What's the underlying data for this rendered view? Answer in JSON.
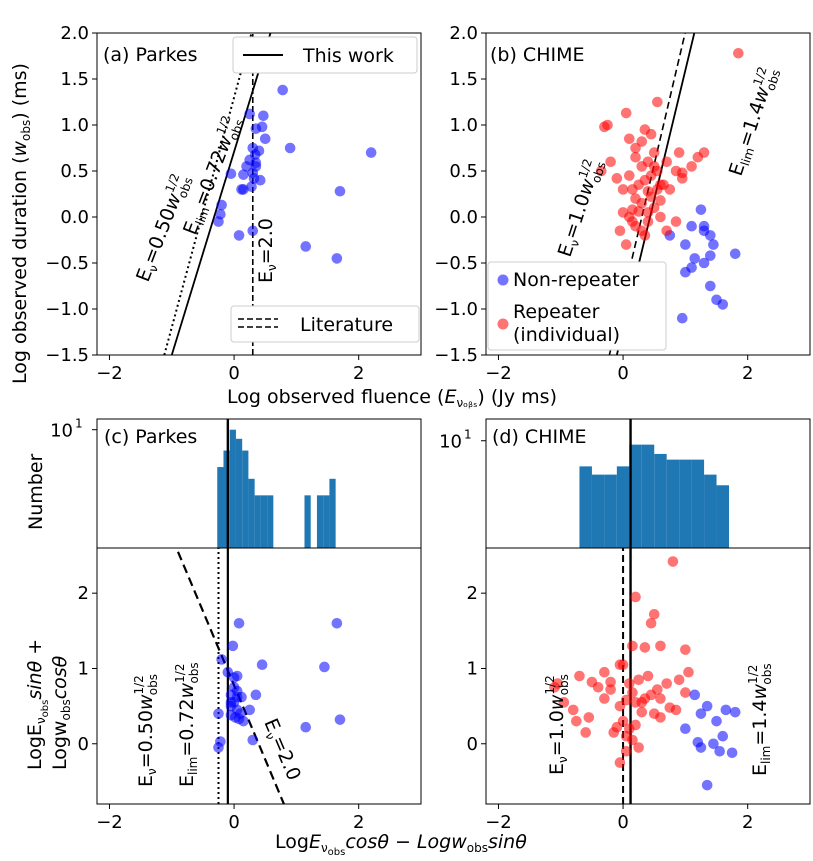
{
  "colors": {
    "blue": "#0000ff",
    "red": "#ff0000",
    "hist": "#1f77b4",
    "black": "#000000"
  },
  "figure": {
    "ylabel_top": "Log observed duration (wₒᵦₛ) (ms)",
    "ylabel_top_main": "Log observed duration (",
    "ylabel_top_w": "w",
    "ylabel_top_sub": "obs",
    "ylabel_top_end": ") (ms)",
    "xlabel_top_main": "Log observed fluence (",
    "xlabel_top_E": "E",
    "xlabel_top_sub": "νₒᵦₛ",
    "xlabel_top_end": ") (Jy ms)",
    "ylabel_hist": "Number",
    "ylabel_bottom_1": "LogE",
    "ylabel_bottom_1b": "sinθ +",
    "ylabel_bottom_2": "Logw",
    "ylabel_bottom_2b": "cosθ",
    "xlabel_bottom": "LogEνₒᵦₛcosθ − Logwₒᵦₛsinθ",
    "sub_obs": "obs",
    "sub_nu": "ν",
    "x_pre": "Log",
    "x_E": "E",
    "x_mid": "cosθ − Log",
    "x_w": "w",
    "x_end": "sinθ"
  },
  "chart_data": [
    {
      "id": "a",
      "type": "scatter",
      "title": "(a) Parkes",
      "xlim": [
        -2.2,
        3.0
      ],
      "ylim": [
        -1.5,
        2.0
      ],
      "xticks": [
        -2,
        0,
        2
      ],
      "yticks": [
        -1.5,
        -1.0,
        -0.5,
        0.0,
        0.5,
        1.0,
        1.5,
        2.0
      ],
      "xtick_labels": [
        "−2",
        "0",
        "2"
      ],
      "ytick_labels": [
        "−1.5",
        "−1.0",
        "−0.5",
        "0.0",
        "0.5",
        "1.0",
        "1.5",
        "2.0"
      ],
      "points": [
        [
          -0.05,
          0.47
        ],
        [
          0.15,
          0.46
        ],
        [
          0.25,
          0.62
        ],
        [
          0.3,
          0.75
        ],
        [
          0.32,
          0.42
        ],
        [
          0.28,
          0.33
        ],
        [
          0.35,
          0.55
        ],
        [
          0.42,
          0.4
        ],
        [
          0.45,
          0.98
        ],
        [
          0.47,
          1.1
        ],
        [
          0.5,
          0.85
        ],
        [
          0.34,
          0.68
        ],
        [
          0.2,
          0.55
        ],
        [
          0.15,
          0.3
        ],
        [
          0.12,
          0.3
        ],
        [
          0.3,
          0.48
        ],
        [
          0.35,
          0.96
        ],
        [
          0.35,
          0.59
        ],
        [
          0.78,
          1.38
        ],
        [
          0.9,
          0.75
        ],
        [
          0.25,
          1.12
        ],
        [
          -0.2,
          0.13
        ],
        [
          -0.22,
          0.03
        ],
        [
          -0.25,
          -0.05
        ],
        [
          0.08,
          -0.2
        ],
        [
          0.3,
          -0.15
        ],
        [
          1.15,
          -0.32
        ],
        [
          1.7,
          0.28
        ],
        [
          1.65,
          -0.45
        ],
        [
          2.2,
          0.7
        ],
        [
          0.4,
          0.72
        ]
      ],
      "legend": [
        {
          "label": "This work"
        },
        {
          "label": "Literature"
        }
      ],
      "annotations": [
        "Eν=0.50w",
        "Eₗᵢₘ=0.72w",
        "Eν=2.0"
      ],
      "ann1_pre": "E",
      "ann1_sub": "ν",
      "ann1_mid": "=0.50",
      "ann1_w": "w",
      "ann2_pre": "E",
      "ann2_sub": "lim",
      "ann2_mid": "=0.72",
      "ann2_w": "w",
      "ann3_pre": "E",
      "ann3_sub": "ν",
      "ann3_mid": "=2.0",
      "sup": "1/2",
      "wsub": "obs"
    },
    {
      "id": "b",
      "type": "scatter",
      "title": "(b) CHIME",
      "xlim": [
        -2.2,
        3.0
      ],
      "ylim": [
        -1.5,
        2.0
      ],
      "xticks": [
        -2,
        0,
        2
      ],
      "yticks": [
        -1.5,
        -1.0,
        -0.5,
        0.0,
        0.5,
        1.0,
        1.5,
        2.0
      ],
      "xtick_labels": [
        "−2",
        "0",
        "2"
      ],
      "ytick_labels": [
        "−1.5",
        "−1.0",
        "−0.5",
        "0.0",
        "0.5",
        "1.0",
        "1.5",
        "2.0"
      ],
      "series": [
        {
          "name": "Non-repeater",
          "points": [
            [
              0.75,
              -0.2
            ],
            [
              1.0,
              -0.6
            ],
            [
              1.1,
              -0.55
            ],
            [
              1.3,
              -0.5
            ],
            [
              1.4,
              -0.75
            ],
            [
              1.5,
              -0.9
            ],
            [
              1.45,
              -0.3
            ],
            [
              1.3,
              -0.15
            ],
            [
              1.4,
              -0.2
            ],
            [
              1.1,
              -0.1
            ],
            [
              1.25,
              0.08
            ],
            [
              1.4,
              -0.42
            ],
            [
              1.6,
              -0.95
            ],
            [
              0.95,
              -1.1
            ],
            [
              1.8,
              -0.4
            ],
            [
              1.15,
              -0.45
            ],
            [
              1.0,
              -0.3
            ],
            [
              1.3,
              -0.1
            ]
          ]
        },
        {
          "name": "Repeater (individual)",
          "points": [
            [
              -0.3,
              0.98
            ],
            [
              -0.25,
              1.0
            ],
            [
              0.05,
              1.13
            ],
            [
              0.55,
              1.25
            ],
            [
              1.85,
              1.78
            ],
            [
              0.1,
              0.85
            ],
            [
              0.2,
              0.75
            ],
            [
              0.35,
              0.95
            ],
            [
              0.45,
              0.9
            ],
            [
              0.5,
              0.7
            ],
            [
              0.55,
              0.5
            ],
            [
              0.4,
              0.6
            ],
            [
              0.3,
              0.55
            ],
            [
              0.35,
              0.4
            ],
            [
              0.25,
              0.35
            ],
            [
              0.15,
              0.3
            ],
            [
              0.1,
              0.45
            ],
            [
              0.2,
              0.2
            ],
            [
              0.3,
              0.15
            ],
            [
              0.4,
              0.05
            ],
            [
              0.5,
              0.1
            ],
            [
              0.45,
              0.22
            ],
            [
              0.55,
              0.3
            ],
            [
              0.6,
              0.35
            ],
            [
              0.7,
              0.6
            ],
            [
              0.85,
              0.5
            ],
            [
              0.95,
              0.42
            ],
            [
              1.1,
              0.55
            ],
            [
              1.2,
              0.65
            ],
            [
              1.3,
              0.7
            ],
            [
              0.9,
              0.7
            ],
            [
              0.75,
              0.3
            ],
            [
              0.6,
              0.18
            ],
            [
              0.4,
              -0.05
            ],
            [
              0.3,
              -0.15
            ],
            [
              0.2,
              -0.1
            ],
            [
              0.05,
              -0.3
            ],
            [
              0.1,
              0.0
            ],
            [
              0.15,
              0.08
            ],
            [
              0.25,
              0.06
            ],
            [
              -0.1,
              0.42
            ],
            [
              -0.2,
              0.6
            ],
            [
              -0.35,
              0.5
            ],
            [
              0.0,
              0.3
            ],
            [
              0.85,
              -0.05
            ],
            [
              0.7,
              -0.15
            ],
            [
              0.6,
              0.0
            ],
            [
              0.95,
              0.48
            ],
            [
              0.35,
              -0.2
            ],
            [
              0.15,
              -0.05
            ],
            [
              0.45,
              0.45
            ],
            [
              0.5,
              0.55
            ],
            [
              0.2,
              0.65
            ],
            [
              0.3,
              0.82
            ],
            [
              0.65,
              0.35
            ],
            [
              0.0,
              0.05
            ],
            [
              -0.05,
              -0.15
            ],
            [
              0.4,
              0.28
            ]
          ]
        }
      ],
      "legend": [
        {
          "label": "Non-repeater"
        },
        {
          "label": "Repeater"
        },
        {
          "label": "(individual)"
        }
      ],
      "ann1_pre": "E",
      "ann1_sub": "ν",
      "ann1_mid": "=1.0",
      "ann1_w": "w",
      "ann2_pre": "E",
      "ann2_sub": "lim",
      "ann2_mid": "=1.4",
      "ann2_w": "w",
      "sup": "1/2",
      "wsub": "obs"
    },
    {
      "id": "c_hist",
      "type": "bar",
      "title": "(c) Parkes",
      "ylabel": "Number",
      "xlim": [
        -2.2,
        3.0
      ],
      "yscale": "log",
      "ylim": [
        0.55,
        13
      ],
      "ytick_label": "10",
      "ytick_sup": "1",
      "bin_edges": [
        -0.27,
        -0.17,
        -0.07,
        0.03,
        0.13,
        0.23,
        0.33,
        0.43,
        0.53,
        0.63,
        0.73,
        0.83,
        0.93,
        1.03,
        1.13,
        1.23,
        1.33,
        1.43,
        1.53,
        1.63,
        1.73
      ],
      "counts": [
        4,
        6,
        10,
        8,
        6,
        3,
        2,
        2,
        2,
        0,
        0,
        0,
        0,
        0,
        2,
        0,
        2,
        2,
        3,
        0
      ],
      "vline": -0.1
    },
    {
      "id": "d_hist",
      "type": "bar",
      "title": "(d) CHIME",
      "xlim": [
        -2.2,
        3.0
      ],
      "yscale": "log",
      "ylim": [
        0.55,
        18
      ],
      "ytick_label": "10",
      "ytick_sup": "1",
      "bin_edges": [
        -0.7,
        -0.5,
        -0.3,
        -0.1,
        0.1,
        0.3,
        0.5,
        0.7,
        0.9,
        1.1,
        1.3,
        1.5,
        1.7
      ],
      "counts": [
        5,
        4,
        4,
        5,
        9,
        9,
        7,
        6,
        6,
        6,
        4,
        3
      ],
      "vline": 0.12
    },
    {
      "id": "c_scatter",
      "type": "scatter",
      "xlim": [
        -2.2,
        3.0
      ],
      "ylim": [
        -0.8,
        2.6
      ],
      "xticks": [
        -2,
        0,
        2
      ],
      "yticks": [
        0,
        1,
        2
      ],
      "xtick_labels": [
        "−2",
        "0",
        "2"
      ],
      "ytick_labels": [
        "0",
        "1",
        "2"
      ],
      "points": [
        [
          -0.2,
          1.12
        ],
        [
          -0.25,
          0.4
        ],
        [
          -0.22,
          0.03
        ],
        [
          -0.25,
          -0.05
        ],
        [
          -0.05,
          0.65
        ],
        [
          0.0,
          0.88
        ],
        [
          -0.02,
          1.3
        ],
        [
          0.08,
          1.6
        ],
        [
          -0.05,
          0.5
        ],
        [
          0.0,
          0.55
        ],
        [
          0.05,
          0.7
        ],
        [
          0.0,
          0.75
        ],
        [
          0.05,
          0.45
        ],
        [
          0.1,
          0.4
        ],
        [
          0.02,
          0.35
        ],
        [
          0.08,
          0.33
        ],
        [
          -0.05,
          0.38
        ],
        [
          0.12,
          0.62
        ],
        [
          0.25,
          0.45
        ],
        [
          0.35,
          0.65
        ],
        [
          0.45,
          1.05
        ],
        [
          0.3,
          0.05
        ],
        [
          1.15,
          0.22
        ],
        [
          1.45,
          1.02
        ],
        [
          1.65,
          1.6
        ],
        [
          1.7,
          0.32
        ],
        [
          0.05,
          0.9
        ],
        [
          -0.1,
          0.95
        ],
        [
          0.15,
          0.3
        ],
        [
          -0.05,
          0.55
        ],
        [
          0.05,
          0.62
        ]
      ],
      "vline_solid": -0.1,
      "vline_dotted": -0.25,
      "dashed_line": [
        [
          -0.9,
          2.55
        ],
        [
          0.8,
          -0.8
        ]
      ],
      "ann1_pre": "E",
      "ann1_sub": "ν",
      "ann1_mid": "=0.50",
      "ann1_w": "w",
      "ann2_pre": "E",
      "ann2_sub": "lim",
      "ann2_mid": "=0.72",
      "ann2_w": "w",
      "ann3_pre": "E",
      "ann3_sub": "ν",
      "ann3_mid": "=2.0",
      "sup": "1/2",
      "wsub": "obs"
    },
    {
      "id": "d_scatter",
      "type": "scatter",
      "xlim": [
        -2.2,
        3.0
      ],
      "ylim": [
        -0.8,
        2.6
      ],
      "xticks": [
        -2,
        0,
        2
      ],
      "yticks": [
        0,
        1,
        2
      ],
      "xtick_labels": [
        "−2",
        "0",
        "2"
      ],
      "ytick_labels": [
        "0",
        "1",
        "2"
      ],
      "series": [
        {
          "name": "Non-repeater",
          "points": [
            [
              1.15,
              0.65
            ],
            [
              1.35,
              0.5
            ],
            [
              1.5,
              0.3
            ],
            [
              1.65,
              0.45
            ],
            [
              1.8,
              0.42
            ],
            [
              1.2,
              0.02
            ],
            [
              1.25,
              -0.05
            ],
            [
              1.45,
              0.0
            ],
            [
              1.55,
              -0.1
            ],
            [
              1.75,
              -0.12
            ],
            [
              1.35,
              -0.55
            ],
            [
              1.25,
              0.4
            ],
            [
              1.6,
              0.1
            ],
            [
              1.0,
              0.2
            ]
          ]
        },
        {
          "name": "Repeater (individual)",
          "points": [
            [
              0.8,
              2.42
            ],
            [
              0.2,
              1.95
            ],
            [
              0.5,
              1.72
            ],
            [
              0.45,
              1.6
            ],
            [
              0.15,
              1.3
            ],
            [
              0.35,
              1.28
            ],
            [
              0.6,
              1.3
            ],
            [
              -0.05,
              1.05
            ],
            [
              0.0,
              1.05
            ],
            [
              -0.3,
              0.95
            ],
            [
              -0.7,
              0.9
            ],
            [
              -1.05,
              0.8
            ],
            [
              -1.1,
              0.75
            ],
            [
              -0.95,
              0.55
            ],
            [
              -0.8,
              0.45
            ],
            [
              -0.75,
              0.3
            ],
            [
              -0.5,
              0.82
            ],
            [
              -0.4,
              0.75
            ],
            [
              -0.2,
              0.72
            ],
            [
              0.1,
              0.8
            ],
            [
              0.25,
              0.85
            ],
            [
              0.4,
              0.9
            ],
            [
              0.55,
              0.72
            ],
            [
              0.7,
              0.8
            ],
            [
              0.9,
              0.85
            ],
            [
              1.05,
              0.95
            ],
            [
              1.0,
              0.68
            ],
            [
              0.85,
              0.45
            ],
            [
              0.75,
              0.48
            ],
            [
              0.6,
              0.35
            ],
            [
              0.5,
              0.4
            ],
            [
              0.3,
              0.42
            ],
            [
              0.2,
              0.25
            ],
            [
              0.1,
              0.2
            ],
            [
              0.15,
              0.05
            ],
            [
              0.05,
              0.1
            ],
            [
              0.0,
              0.3
            ],
            [
              -0.05,
              0.5
            ],
            [
              -0.1,
              0.22
            ],
            [
              -0.15,
              0.15
            ],
            [
              0.05,
              -0.1
            ],
            [
              0.25,
              -0.05
            ],
            [
              -0.05,
              -0.25
            ],
            [
              0.3,
              0.55
            ],
            [
              0.45,
              0.65
            ],
            [
              0.6,
              0.6
            ],
            [
              -0.3,
              0.6
            ],
            [
              -0.55,
              0.35
            ],
            [
              0.2,
              0.55
            ],
            [
              0.35,
              0.6
            ],
            [
              1.0,
              1.25
            ],
            [
              -0.2,
              0.82
            ],
            [
              0.05,
              0.58
            ],
            [
              -0.6,
              0.15
            ],
            [
              0.15,
              0.68
            ]
          ]
        }
      ],
      "vline_solid": 0.12,
      "vline_dashed": 0.0,
      "ann1_pre": "E",
      "ann1_sub": "ν",
      "ann1_mid": "=1.0",
      "ann1_w": "w",
      "ann2_pre": "E",
      "ann2_sub": "lim",
      "ann2_mid": "=1.4",
      "ann2_w": "w",
      "sup": "1/2",
      "wsub": "obs"
    }
  ]
}
